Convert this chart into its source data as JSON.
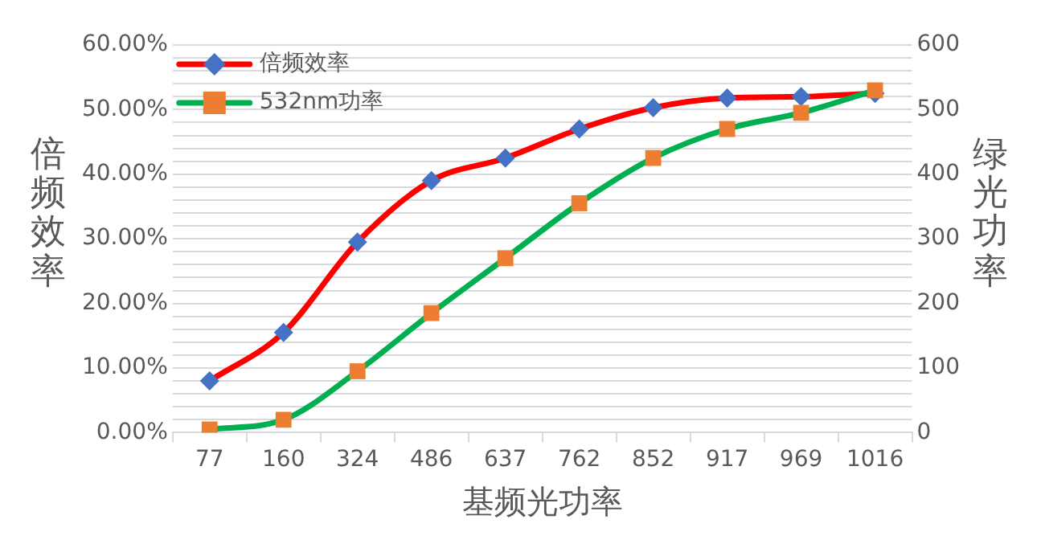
{
  "chart_data": {
    "type": "line",
    "xlabel": "基频光功率",
    "ylabel": "倍频效率",
    "y2label": "绿光功率",
    "categories": [
      "77",
      "160",
      "324",
      "486",
      "637",
      "762",
      "852",
      "917",
      "969",
      "1016"
    ],
    "series": [
      {
        "name": "倍频效率",
        "color": "#ff0000",
        "colors": [
          "#4472c4",
          "#4472c4",
          "#4472c4",
          "#4472c4",
          "#4472c4",
          "#4472c4",
          "#4472c4",
          "#4472c4",
          "#4472c4",
          "#4472c4"
        ],
        "marker": "diamond",
        "values": [
          8,
          15.5,
          29.5,
          39,
          42.5,
          47,
          50.3,
          51.8,
          52,
          52.5
        ]
      },
      {
        "name": "532nm功率",
        "color": "#00b050",
        "colors": [
          "#ed7d31",
          "#ed7d31",
          "#ed7d31",
          "#ed7d31",
          "#ed7d31",
          "#ed7d31",
          "#ed7d31",
          "#ed7d31",
          "#ed7d31",
          "#ed7d31"
        ],
        "marker": "square",
        "axis": "y2",
        "values": [
          5,
          20,
          95,
          185,
          270,
          355,
          425,
          470,
          495,
          530
        ]
      }
    ],
    "ylim": [
      0,
      60
    ],
    "yticks": [
      {
        "value": 0,
        "label": "0.00%"
      },
      {
        "value": 2,
        "label": null
      },
      {
        "value": 4,
        "label": null
      },
      {
        "value": 6,
        "label": null
      },
      {
        "value": 8,
        "label": null
      },
      {
        "value": 10,
        "label": "10.00%"
      },
      {
        "value": 12,
        "label": null
      },
      {
        "value": 14,
        "label": null
      },
      {
        "value": 16,
        "label": null
      },
      {
        "value": 18,
        "label": null
      },
      {
        "value": 20,
        "label": "20.00%"
      },
      {
        "value": 22,
        "label": null
      },
      {
        "value": 24,
        "label": null
      },
      {
        "value": 26,
        "label": null
      },
      {
        "value": 28,
        "label": null
      },
      {
        "value": 30,
        "label": "30.00%"
      },
      {
        "value": 32,
        "label": null
      },
      {
        "value": 34,
        "label": null
      },
      {
        "value": 36,
        "label": null
      },
      {
        "value": 38,
        "label": null
      },
      {
        "value": 40,
        "label": "40.00%"
      },
      {
        "value": 42,
        "label": null
      },
      {
        "value": 44,
        "label": null
      },
      {
        "value": 46,
        "label": null
      },
      {
        "value": 48,
        "label": null
      },
      {
        "value": 50,
        "label": "50.00%"
      },
      {
        "value": 52,
        "label": null
      },
      {
        "value": 54,
        "label": null
      },
      {
        "value": 56,
        "label": null
      },
      {
        "value": 58,
        "label": null
      },
      {
        "value": 60,
        "label": "60.00%"
      }
    ],
    "y2lim": [
      0,
      600
    ],
    "y2ticks": [
      0,
      100,
      200,
      300,
      400,
      500,
      600
    ],
    "grid": "y",
    "legend": "top left",
    "line_style": "solid"
  }
}
